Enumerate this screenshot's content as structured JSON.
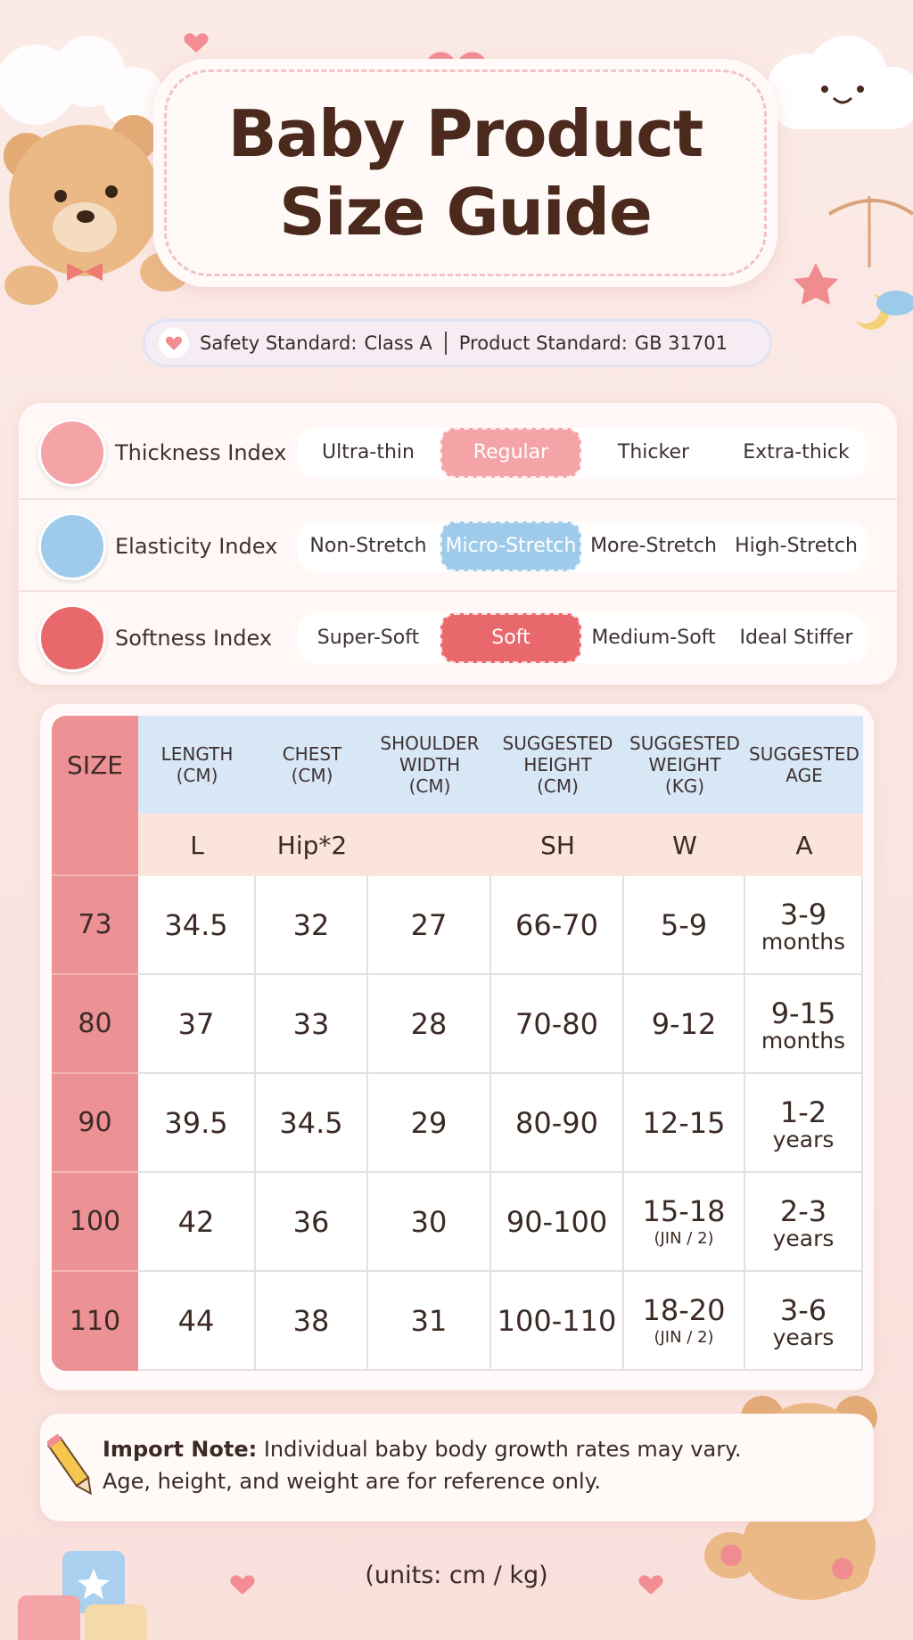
{
  "header": {
    "title": [
      "Baby Product",
      "Size Guide"
    ]
  },
  "standards": {
    "safety_label": "Safety Standard:",
    "safety_value": "Class A",
    "product_label": "Product Standard:",
    "product_value": "GB 31701"
  },
  "indices": [
    {
      "label": "Thickness Index",
      "options": [
        "Ultra-thin",
        "Regular",
        "Thicker",
        "Extra-thick"
      ],
      "selected": 1,
      "color": "#f4a3a7"
    },
    {
      "label": "Elasticity Index",
      "options": [
        "Non-Stretch",
        "Micro-Stretch",
        "More-Stretch",
        "High-Stretch"
      ],
      "selected": 1,
      "color": "#9fcbea"
    },
    {
      "label": "Softness Index",
      "options": [
        "Super-Soft",
        "Soft",
        "Medium-Soft",
        "Ideal Stiffer"
      ],
      "selected": 1,
      "color": "#e9686c"
    }
  ],
  "table": {
    "headers": [
      [
        "SIZE"
      ],
      [
        "LENGTH",
        "(CM)"
      ],
      [
        "CHEST",
        "(CM)"
      ],
      [
        "SHOULDER",
        "WIDTH",
        "(CM)"
      ],
      [
        "SUGGESTED",
        "HEIGHT",
        "(CM)"
      ],
      [
        "SUGGESTED",
        "WEIGHT",
        "(KG)"
      ],
      [
        "SUGGESTED",
        "AGE"
      ]
    ],
    "codes": [
      null,
      "L",
      "Hip*2",
      null,
      "SH",
      "W",
      "A"
    ],
    "rows": [
      [
        "73",
        "34.5",
        "32",
        "27",
        "66-70",
        "5-9",
        {
          "main": "3-9",
          "sub": "months"
        }
      ],
      [
        "80",
        "37",
        "33",
        "28",
        "70-80",
        "9-12",
        {
          "main": "9-15",
          "sub": "months"
        }
      ],
      [
        "90",
        "39.5",
        "34.5",
        "29",
        "80-90",
        "12-15",
        {
          "main": "1-2",
          "sub": "years"
        }
      ],
      [
        "100",
        "42",
        "36",
        "30",
        "90-100",
        {
          "main": "15-18",
          "sub": "(JIN / 2)"
        },
        {
          "main": "2-3",
          "sub": "years"
        }
      ],
      [
        "110",
        "44",
        "38",
        "31",
        "100-110",
        {
          "main": "18-20",
          "sub": "(JIN / 2)"
        },
        {
          "main": "3-6",
          "sub": "years"
        }
      ]
    ]
  },
  "note": {
    "label": "Import Note:",
    "text": "Individual baby body growth rates may vary. Age, height, and weight are for reference only."
  },
  "footer": "(units: cm / kg)"
}
